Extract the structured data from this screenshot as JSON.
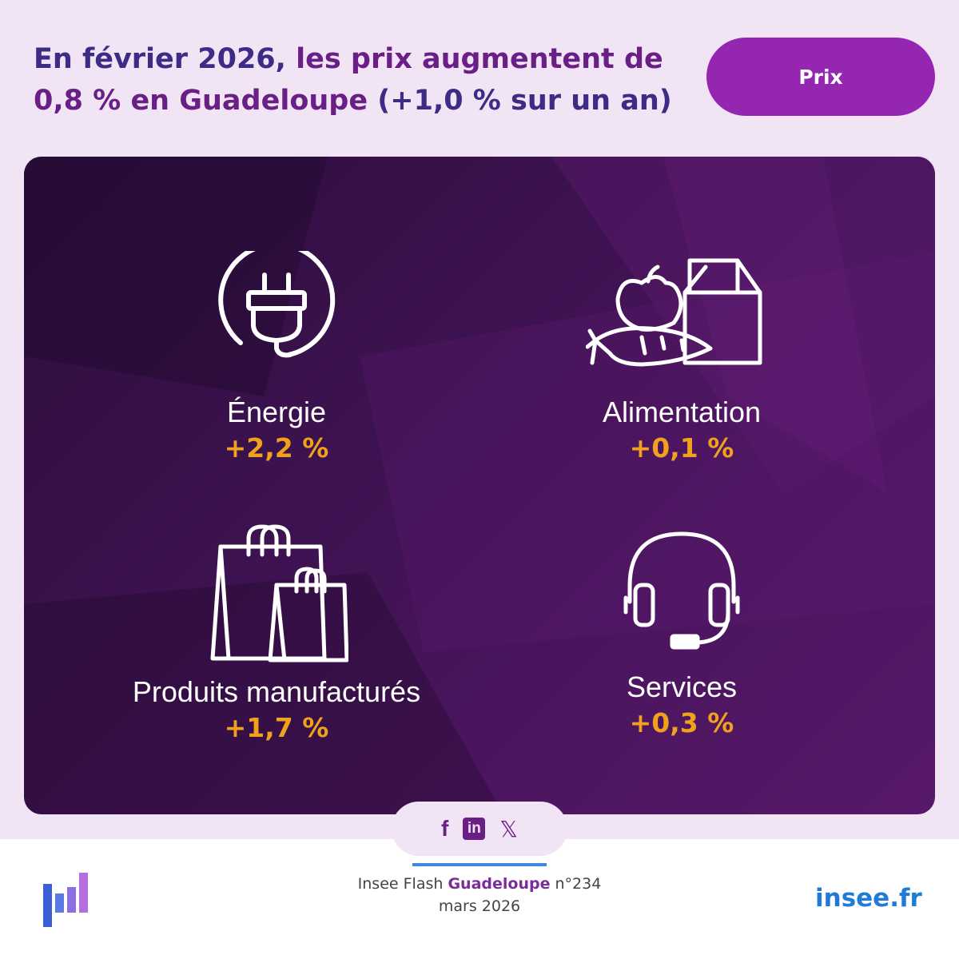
{
  "header": {
    "title_part1": "En février 2026,",
    "title_part2": " les prix augmentent de 0,8 % en Guadeloupe",
    "title_part3": " (+1,0 % sur un an)",
    "tag": "Prix"
  },
  "categories": [
    {
      "label": "Énergie",
      "value": "+2,2 %",
      "icon": "power-plug-icon"
    },
    {
      "label": "Alimentation",
      "value": "+0,1 %",
      "icon": "groceries-icon"
    },
    {
      "label": "Produits manufacturés",
      "value": "+1,7 %",
      "icon": "shopping-bags-icon"
    },
    {
      "label": "Services",
      "value": "+0,3 %",
      "icon": "headset-icon"
    }
  ],
  "social": {
    "facebook": "f",
    "linkedin": "in",
    "x": "𝕏"
  },
  "footer": {
    "ref_prefix": "Insee Flash ",
    "ref_region": "Guadeloupe",
    "ref_suffix": " n°234",
    "date": "mars 2026",
    "site": "insee.fr"
  },
  "colors": {
    "background": "#f1e4f4",
    "title": "#3d2c85",
    "accent_purple": "#9426b2",
    "value_orange": "#f0a21c",
    "link_blue": "#1f7ad8"
  }
}
